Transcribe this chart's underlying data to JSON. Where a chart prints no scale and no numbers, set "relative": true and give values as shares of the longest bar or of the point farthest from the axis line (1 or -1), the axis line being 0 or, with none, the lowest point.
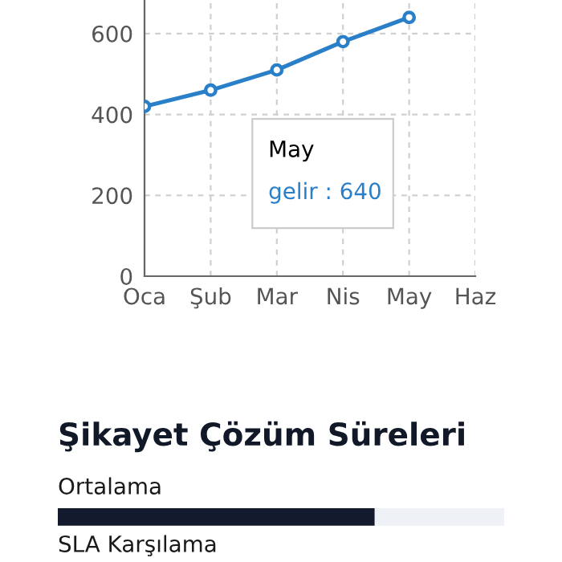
{
  "chart_data": [
    {
      "type": "line",
      "categories": [
        "Oca",
        "Şub",
        "Mar",
        "Nis",
        "May",
        "Haz"
      ],
      "series": [
        {
          "color": "#2a7fc9",
          "values": [
            420,
            460,
            510,
            580,
            640,
            null
          ]
        }
      ],
      "ylim": [
        0,
        683
      ],
      "yticks": [
        0,
        200,
        400,
        600
      ],
      "grid": true,
      "marker": "circle",
      "line_style": "solid",
      "annotations": [
        "May\ngelir : 640"
      ]
    },
    {
      "type": "bar",
      "title": "Şikayet Çözüm Süreleri",
      "orientation": "horizontal",
      "stacked": true,
      "relative": true,
      "categories": [
        "Ortalama",
        "SLA Karşılama"
      ],
      "series": [
        {
          "color": "#131a2e",
          "values": [
            0.71,
            null
          ]
        },
        {
          "color": "#eef1f5",
          "values": [
            0.29,
            null
          ]
        }
      ]
    }
  ]
}
